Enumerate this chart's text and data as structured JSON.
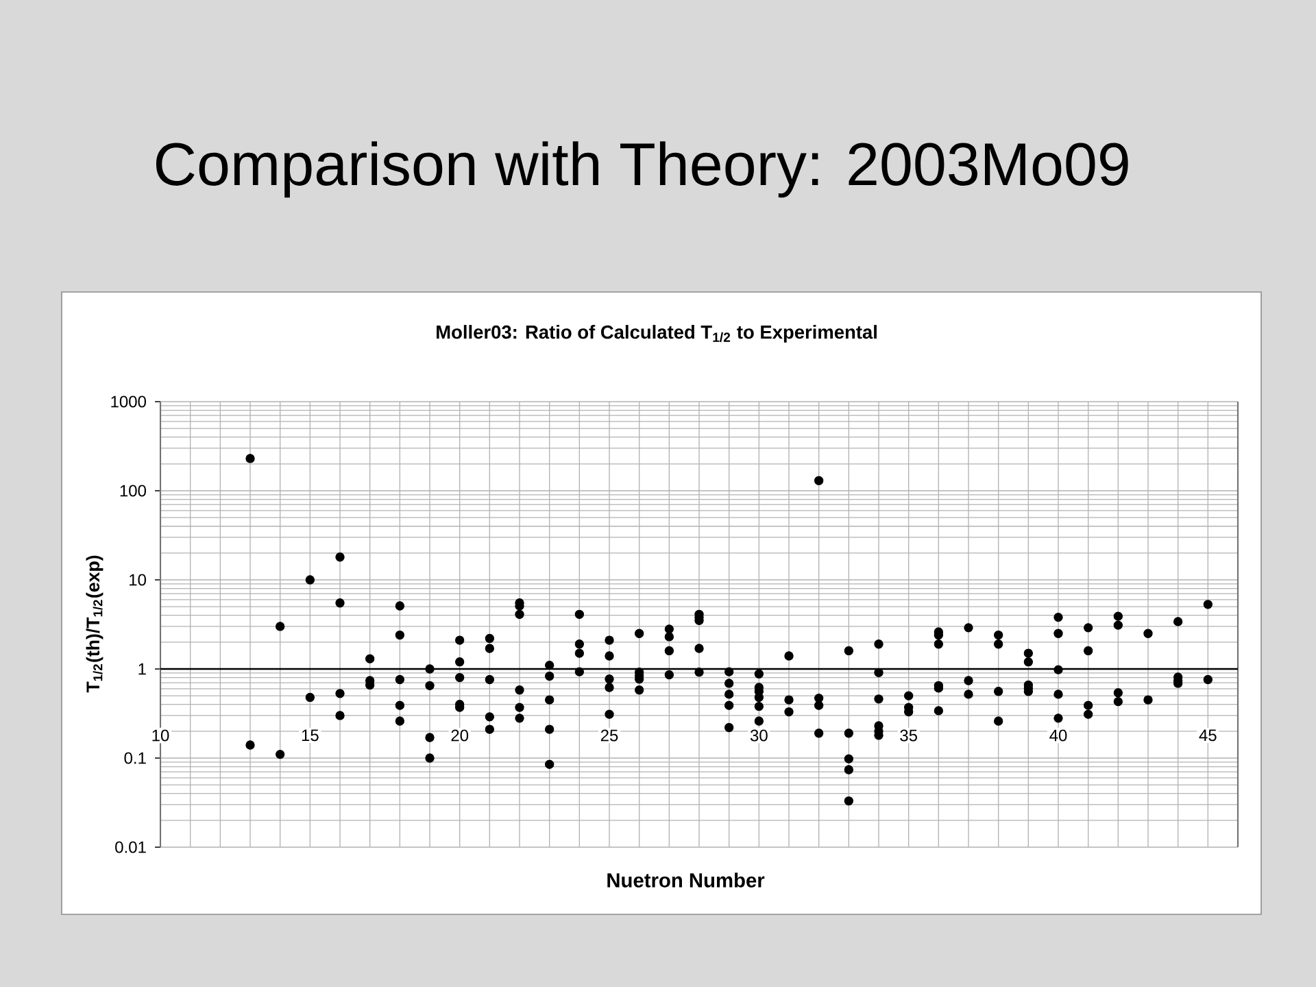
{
  "chart_data": {
    "type": "scatter",
    "title": "Comparison with Theory: 2003Mo09",
    "subtitle": "Moller03: Ratio of Calculated T$_{1/2}$ to Experimental",
    "xlabel": "Nuetron Number",
    "ylabel": "T$_{1/2}$(th)/T$_{1/2}$(exp)",
    "x": [
      13,
      13,
      14,
      14,
      15,
      15,
      16,
      16,
      16,
      16,
      17,
      17,
      17,
      18,
      18,
      18,
      18,
      18,
      19,
      19,
      19,
      19,
      20,
      20,
      20,
      20,
      20,
      21,
      21,
      21,
      21,
      21,
      22,
      22,
      22,
      22,
      22,
      22,
      23,
      23,
      23,
      23,
      23,
      24,
      24,
      24,
      24,
      25,
      25,
      25,
      25,
      25,
      26,
      26,
      26,
      26,
      26,
      27,
      27,
      27,
      27,
      28,
      28,
      28,
      28,
      28,
      29,
      29,
      29,
      29,
      29,
      30,
      30,
      30,
      30,
      30,
      30,
      31,
      31,
      31,
      32,
      32,
      32,
      32,
      33,
      33,
      33,
      33,
      33,
      34,
      34,
      34,
      34,
      34,
      34,
      35,
      35,
      35,
      36,
      36,
      36,
      36,
      36,
      36,
      37,
      37,
      37,
      38,
      38,
      38,
      38,
      39,
      39,
      39,
      39,
      39,
      40,
      40,
      40,
      40,
      40,
      41,
      41,
      41,
      41,
      42,
      42,
      42,
      42,
      43,
      43,
      44,
      44,
      44,
      44,
      45,
      45
    ],
    "values": [
      230,
      0.14,
      3,
      0.11,
      10,
      0.48,
      18,
      5.5,
      0.53,
      0.3,
      1.3,
      0.74,
      0.66,
      5.1,
      2.4,
      0.76,
      0.39,
      0.26,
      1,
      0.65,
      0.17,
      0.1,
      2.1,
      1.2,
      0.8,
      0.4,
      0.37,
      2.2,
      1.7,
      0.76,
      0.29,
      0.21,
      5.5,
      5.1,
      4.1,
      0.58,
      0.37,
      0.28,
      1.1,
      0.83,
      0.45,
      0.21,
      0.085,
      4.1,
      1.9,
      1.5,
      0.93,
      2.1,
      1.4,
      0.77,
      0.62,
      0.31,
      2.5,
      0.92,
      0.84,
      0.77,
      0.58,
      2.8,
      2.3,
      1.6,
      0.86,
      4.1,
      3.8,
      3.5,
      1.7,
      0.92,
      0.93,
      0.69,
      0.52,
      0.39,
      0.22,
      0.88,
      0.62,
      0.56,
      0.48,
      0.38,
      0.26,
      1.4,
      0.45,
      0.33,
      130,
      0.47,
      0.39,
      0.19,
      1.6,
      0.19,
      0.098,
      0.074,
      0.033,
      1.9,
      0.91,
      0.46,
      0.23,
      0.2,
      0.18,
      0.5,
      0.37,
      0.33,
      2.6,
      2.4,
      1.9,
      0.65,
      0.61,
      0.34,
      2.9,
      0.74,
      0.52,
      2.4,
      1.9,
      0.56,
      0.26,
      1.5,
      1.2,
      0.66,
      0.61,
      0.56,
      3.8,
      2.5,
      0.98,
      0.52,
      0.28,
      2.9,
      1.6,
      0.39,
      0.31,
      3.9,
      3.1,
      0.54,
      0.43,
      2.5,
      0.45,
      3.4,
      0.81,
      0.74,
      0.69,
      5.3,
      0.76
    ],
    "color": "#000000",
    "marker": "circle",
    "log": "y",
    "xlim": [
      10,
      46
    ],
    "xticks": [
      10,
      15,
      20,
      25,
      30,
      35,
      40,
      45
    ],
    "ylim": [
      0.01,
      1000
    ],
    "yticks": [
      0.01,
      0.1,
      1,
      10,
      100,
      1000
    ],
    "ref_lines": [
      {
        "axis": "y",
        "value": 1,
        "color": "#000000"
      }
    ],
    "grid": true
  }
}
